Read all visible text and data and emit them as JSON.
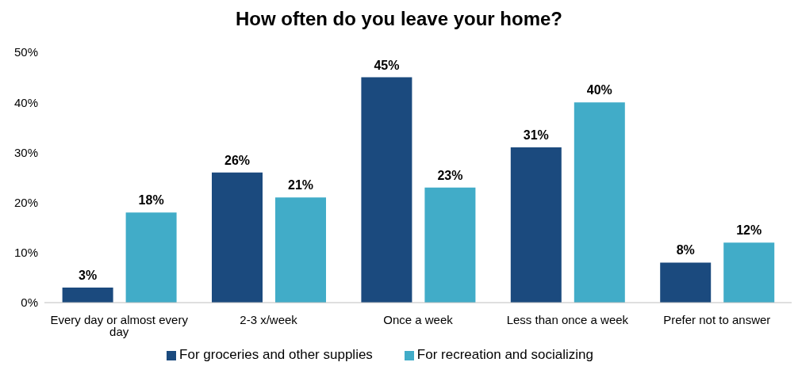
{
  "chart_data": {
    "type": "bar",
    "title": "How often do you leave your home?",
    "categories": [
      "Every day or almost every day",
      "2-3 x/week",
      "Once a week",
      "Less than once a week",
      "Prefer not to answer"
    ],
    "series": [
      {
        "name": "For groceries and other supplies",
        "color": "#1b4a7e",
        "values": [
          3,
          26,
          45,
          31,
          8
        ],
        "value_labels": [
          "3%",
          "26%",
          "45%",
          "31%",
          "8%"
        ]
      },
      {
        "name": "For recreation and socializing",
        "color": "#41acc8",
        "values": [
          18,
          21,
          23,
          40,
          12
        ],
        "value_labels": [
          "18%",
          "21%",
          "23%",
          "40%",
          "12%"
        ]
      }
    ],
    "ylim": [
      0,
      50
    ],
    "yticks": [
      {
        "value": 0,
        "label": "0%"
      },
      {
        "value": 10,
        "label": "10%"
      },
      {
        "value": 20,
        "label": "20%"
      },
      {
        "value": 30,
        "label": "30%"
      },
      {
        "value": 40,
        "label": "40%"
      },
      {
        "value": 50,
        "label": "50%"
      }
    ],
    "legend": "bottom"
  }
}
